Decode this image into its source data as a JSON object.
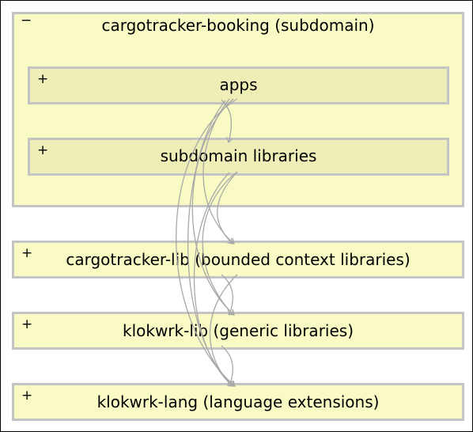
{
  "outer": {
    "toggle": "−",
    "label": "cargotracker-booking (subdomain)"
  },
  "nodes": {
    "apps": {
      "toggle": "+",
      "label": "apps"
    },
    "subdomain_libraries": {
      "toggle": "+",
      "label": "subdomain libraries"
    },
    "cargotracker_lib": {
      "toggle": "+",
      "label": "cargotracker-lib (bounded context libraries)"
    },
    "klokwrk_lib": {
      "toggle": "+",
      "label": "klokwrk-lib (generic libraries)"
    },
    "klokwrk_lang": {
      "toggle": "+",
      "label": "klokwrk-lang (language extensions)"
    }
  },
  "colors": {
    "box_fill": "#fafac4",
    "inner_box_fill": "#eeeeb6",
    "box_border": "#c4c4c4",
    "edge": "#a8a8a8"
  }
}
